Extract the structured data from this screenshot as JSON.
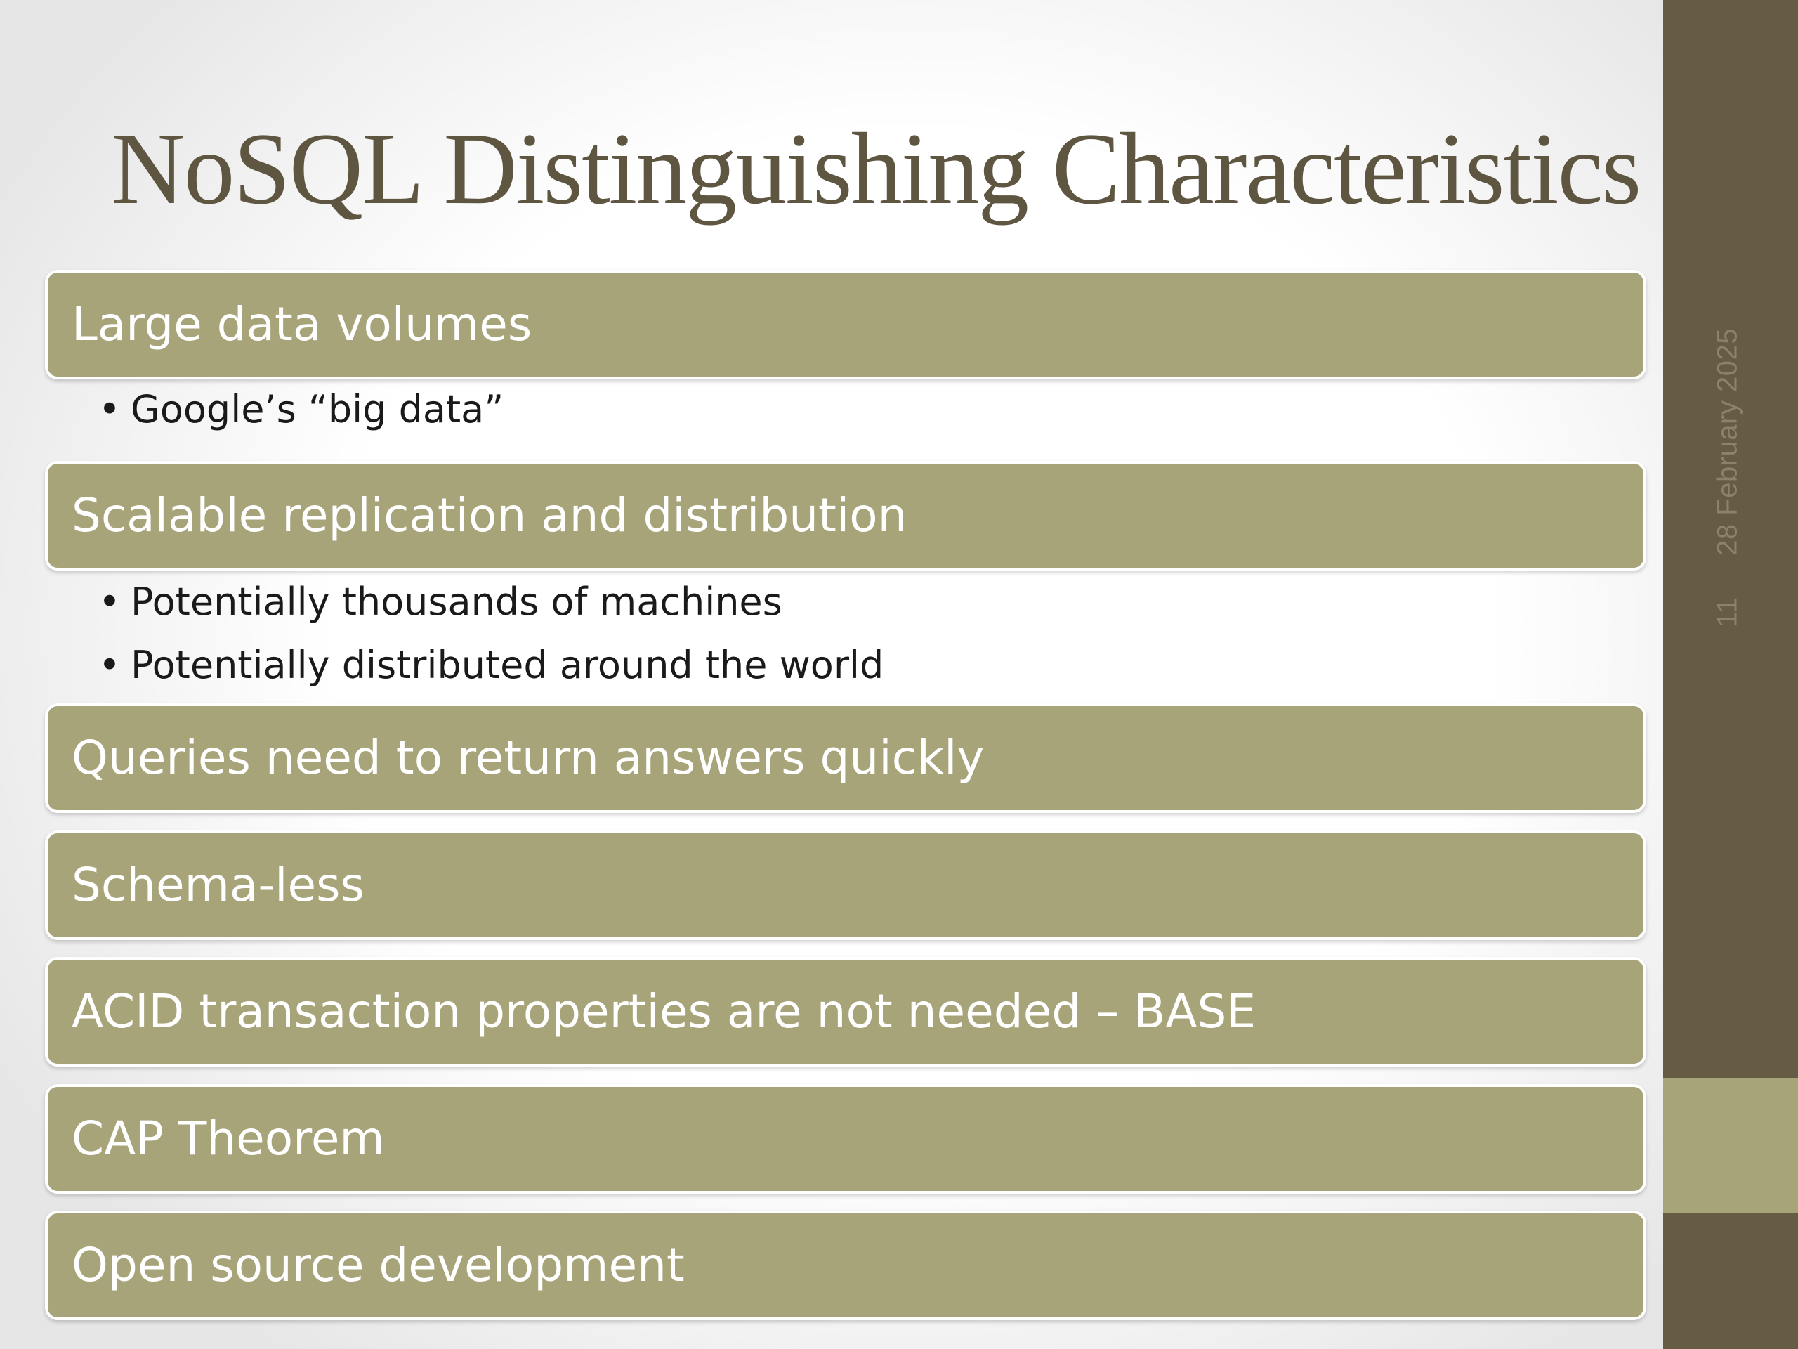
{
  "slide": {
    "title": "NoSQL Distinguishing Characteristics",
    "side_date": "28 February 2025",
    "page_number": "11",
    "colors": {
      "title": "#5e5640",
      "box_fill": "#a8a47a",
      "side_bar": "#665c46",
      "side_accent": "#a8a47a"
    },
    "items": [
      {
        "label": "Large data volumes",
        "bullets": [
          "Google’s “big data”"
        ]
      },
      {
        "label": "Scalable replication and distribution",
        "bullets": [
          "Potentially thousands of machines",
          "Potentially distributed around the world"
        ]
      },
      {
        "label": "Queries need to return answers quickly"
      },
      {
        "label": "Schema-less"
      },
      {
        "label": "ACID transaction properties are not needed – BASE"
      },
      {
        "label": "CAP Theorem"
      },
      {
        "label": "Open source development"
      }
    ],
    "bullet_symbol": "•"
  }
}
